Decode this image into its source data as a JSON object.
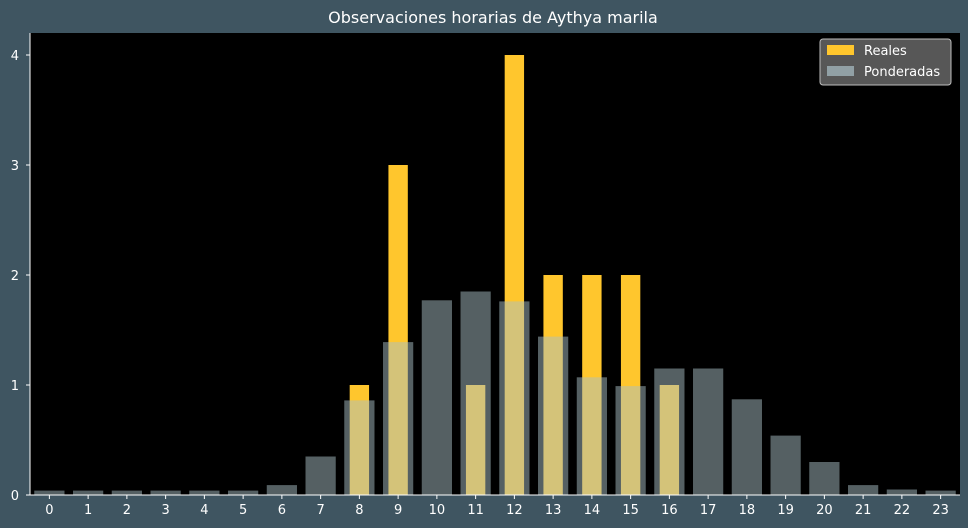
{
  "chart_data": {
    "type": "bar",
    "title": "Observaciones horarias de Aythya marila",
    "xlabel": "",
    "ylabel": "",
    "categories": [
      "0",
      "1",
      "2",
      "3",
      "4",
      "5",
      "6",
      "7",
      "8",
      "9",
      "10",
      "11",
      "12",
      "13",
      "14",
      "15",
      "16",
      "17",
      "18",
      "19",
      "20",
      "21",
      "22",
      "23"
    ],
    "ylim": [
      0,
      4.2
    ],
    "yticks": [
      0,
      1,
      2,
      3,
      4
    ],
    "grid": false,
    "legend_position": "top-right",
    "series": [
      {
        "name": "Reales",
        "color": "#ffc62d",
        "values": [
          0,
          0,
          0,
          0,
          0,
          0,
          0,
          0,
          1,
          3,
          0,
          1,
          4,
          2,
          2,
          2,
          1,
          0,
          0,
          0,
          0,
          0,
          0,
          0
        ]
      },
      {
        "name": "Ponderadas",
        "color": "#a9bfc6",
        "values": [
          0.04,
          0.04,
          0.04,
          0.04,
          0.04,
          0.04,
          0.09,
          0.35,
          0.86,
          1.39,
          1.77,
          1.85,
          1.76,
          1.44,
          1.07,
          0.99,
          1.15,
          1.15,
          0.87,
          0.54,
          0.3,
          0.09,
          0.05,
          0.04
        ]
      }
    ]
  }
}
